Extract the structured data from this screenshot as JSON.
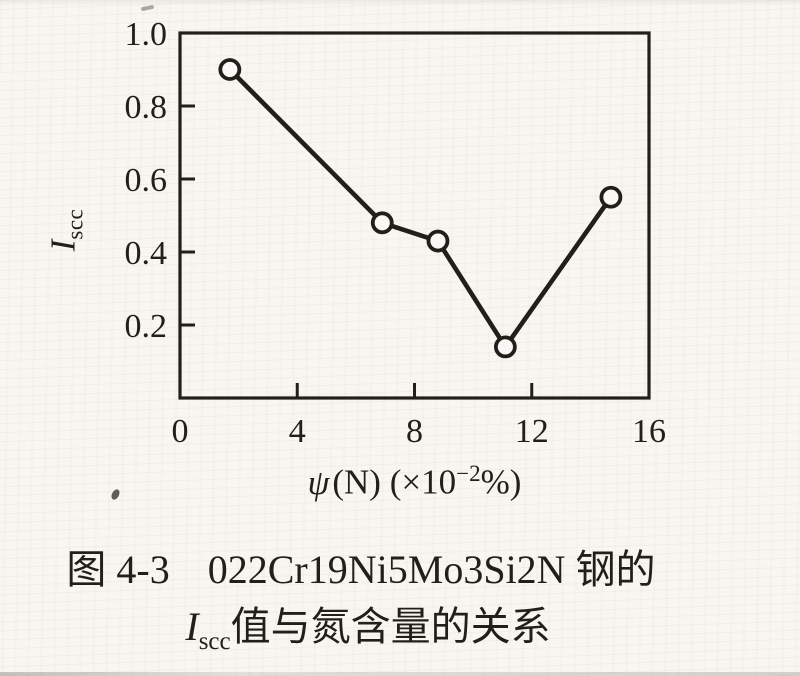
{
  "figure": {
    "ylabel": {
      "symbol": "I",
      "subscript": "scc"
    },
    "xlabel": {
      "psi": "ψ",
      "arg": "(N)",
      "open": "(×10",
      "exponent": "−2",
      "close": "%)"
    },
    "caption": {
      "line1_prefix": "图 4-3",
      "line1_main": "022Cr19Ni5Mo3Si2N 钢的",
      "line2_symbol": "I",
      "line2_subscript": "scc",
      "line2_text": "值与氮含量的关系"
    }
  },
  "colors": {
    "ink": "#221f1b",
    "paper": "#f7f6f1",
    "marker_fill": "#f9f8f4"
  },
  "chart_data": {
    "type": "line",
    "title": "图4-3 022Cr19Ni5Mo3Si2N 钢的 Iscc 值与氮含量的关系",
    "xlabel": "ψ(N) (×10⁻²%)",
    "ylabel": "Iscc",
    "xlim": [
      0,
      16
    ],
    "ylim": [
      0,
      1.0
    ],
    "grid": false,
    "legend": "none",
    "x_ticks": [
      {
        "value": 0,
        "label": "0"
      },
      {
        "value": 4,
        "label": "4"
      },
      {
        "value": 8,
        "label": "8"
      },
      {
        "value": 12,
        "label": "12"
      },
      {
        "value": 16,
        "label": "16"
      }
    ],
    "y_ticks": [
      {
        "value": 1.0,
        "label": "1.0"
      },
      {
        "value": 0.8,
        "label": "0.8"
      },
      {
        "value": 0.6,
        "label": "0.6"
      },
      {
        "value": 0.4,
        "label": "0.4"
      },
      {
        "value": 0.2,
        "label": "0.2"
      }
    ],
    "x_inner_tick_values": [
      4,
      8,
      12
    ],
    "y_inner_tick_values": [
      0.2,
      0.4,
      0.6,
      0.8
    ],
    "series": [
      {
        "name": "Iscc",
        "marker": "open-circle",
        "points": [
          {
            "x": 1.7,
            "y": 0.9
          },
          {
            "x": 6.9,
            "y": 0.48
          },
          {
            "x": 8.8,
            "y": 0.43
          },
          {
            "x": 11.1,
            "y": 0.14
          },
          {
            "x": 14.7,
            "y": 0.55
          }
        ]
      }
    ]
  }
}
